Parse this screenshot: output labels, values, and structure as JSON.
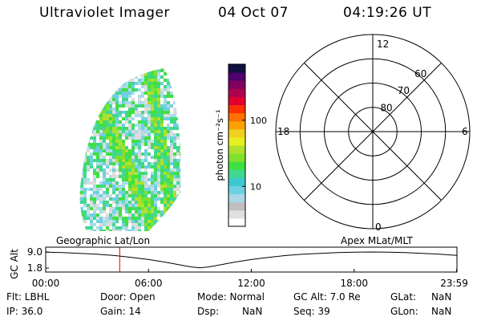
{
  "header": {
    "title": "Ultraviolet Imager",
    "date": "04 Oct 07",
    "time": "04:19:26 UT"
  },
  "colorbar": {
    "unit_label": "photon cm⁻²s⁻¹",
    "ticks": [
      {
        "label": "100",
        "value": 100
      },
      {
        "label": "10",
        "value": 10
      }
    ],
    "range": [
      2.5,
      700
    ],
    "colors": [
      "#ffffff",
      "#e0e0e0",
      "#bfbfbf",
      "#a8d8e8",
      "#6fd0e0",
      "#3cc8d0",
      "#40d890",
      "#40e040",
      "#80e030",
      "#b0e030",
      "#e8f020",
      "#f0d020",
      "#ffa000",
      "#ff7000",
      "#ff3000",
      "#e00030",
      "#b00050",
      "#800060",
      "#500070",
      "#101040"
    ]
  },
  "polar_plot": {
    "ring_latitudes": [
      80,
      70,
      60
    ],
    "labels": {
      "top": "12",
      "bottom": "0",
      "left": "18",
      "right": "6"
    }
  },
  "timeline": {
    "y_axis_label": "GC Alt",
    "y_ticks": [
      "9.0",
      "1.8"
    ],
    "x_ticks": [
      "00:00",
      "06:00",
      "12:00",
      "18:00",
      "23:59"
    ],
    "left_label": "Geographic Lat/Lon",
    "right_label": "Apex  MLat/MLT",
    "current_time_hours": 4.32,
    "marker_color": "#e00000",
    "altitude_curve": [
      [
        0,
        8.9
      ],
      [
        1,
        8.7
      ],
      [
        2,
        8.4
      ],
      [
        3,
        8.0
      ],
      [
        4,
        7.4
      ],
      [
        5,
        6.6
      ],
      [
        6,
        5.6
      ],
      [
        7,
        4.4
      ],
      [
        8,
        3.0
      ],
      [
        8.5,
        2.3
      ],
      [
        9,
        1.9
      ],
      [
        9.5,
        2.3
      ],
      [
        10,
        3.0
      ],
      [
        11,
        4.4
      ],
      [
        12,
        5.6
      ],
      [
        13,
        6.6
      ],
      [
        14,
        7.4
      ],
      [
        15,
        8.0
      ],
      [
        16,
        8.4
      ],
      [
        17,
        8.7
      ],
      [
        18,
        8.9
      ],
      [
        19,
        9.0
      ],
      [
        20,
        8.9
      ],
      [
        21,
        8.7
      ],
      [
        22,
        8.4
      ],
      [
        23,
        8.0
      ],
      [
        23.98,
        7.5
      ]
    ]
  },
  "info_fields": {
    "flt": "Flt: LBHL",
    "ip": "IP: 36.0",
    "door": "Door: Open",
    "gain": "Gain: 14",
    "mode": "Mode: Normal",
    "dsp": "Dsp:",
    "dsp_value": "NaN",
    "gc_alt": "GC Alt: 7.0 Re",
    "seq": "Seq: 39",
    "glat": "GLat:",
    "glat_value": "NaN",
    "glon": "GLon:",
    "glon_value": "NaN"
  }
}
